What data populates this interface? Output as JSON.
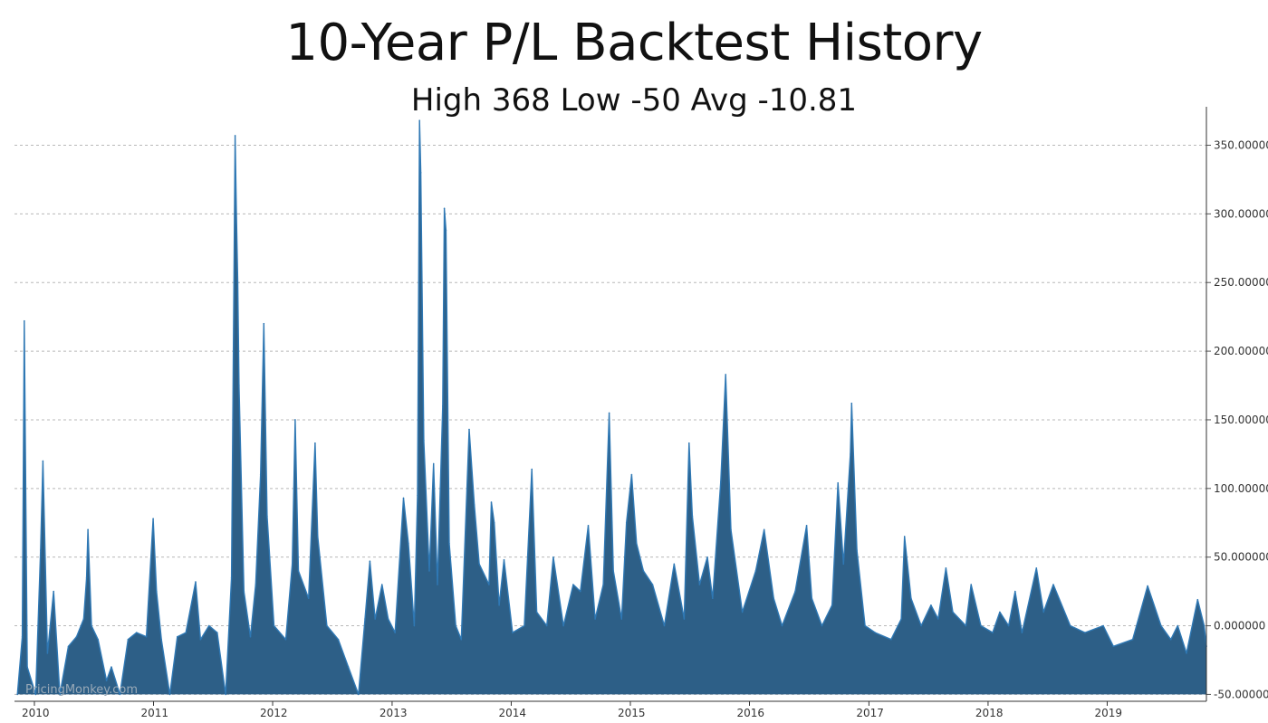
{
  "chart_data": {
    "type": "area",
    "title": "10-Year P/L Backtest History",
    "subtitle": "High 368 Low -50 Avg -10.81",
    "xlabel": "",
    "ylabel": "",
    "x_range": [
      "2009-11",
      "2019-11"
    ],
    "x_ticks": [
      "2010",
      "2011",
      "2012",
      "2013",
      "2014",
      "2015",
      "2016",
      "2017",
      "2018",
      "2019"
    ],
    "ylim": [
      -55,
      378
    ],
    "y_ticks": [
      {
        "value": -50,
        "label": "-50.000000"
      },
      {
        "value": 0,
        "label": "0.000000"
      },
      {
        "value": 50,
        "label": "50.000000"
      },
      {
        "value": 100,
        "label": "100.000000"
      },
      {
        "value": 150,
        "label": "150.000000"
      },
      {
        "value": 200,
        "label": "200.000000"
      },
      {
        "value": 250,
        "label": "250.000000"
      },
      {
        "value": 300,
        "label": "300.000000"
      },
      {
        "value": 350,
        "label": "350.000000"
      }
    ],
    "y_axis_position": "right",
    "grid": "horizontal-dashed",
    "baseline": -50,
    "series_color": "#2f78b4",
    "fill_color": "#2d5f87",
    "watermark": "PricingMonkey.com",
    "series": [
      {
        "points": [
          [
            "2009-11-10",
            -50
          ],
          [
            "2009-11-25",
            -8
          ],
          [
            "2009-12-01",
            222
          ],
          [
            "2009-12-10",
            -30
          ],
          [
            "2010-01-05",
            -50
          ],
          [
            "2010-01-20",
            55
          ],
          [
            "2010-01-27",
            120
          ],
          [
            "2010-02-10",
            -20
          ],
          [
            "2010-03-01",
            25
          ],
          [
            "2010-03-20",
            -50
          ],
          [
            "2010-04-15",
            -15
          ],
          [
            "2010-05-10",
            -8
          ],
          [
            "2010-06-01",
            5
          ],
          [
            "2010-06-10",
            35
          ],
          [
            "2010-06-14",
            70
          ],
          [
            "2010-06-25",
            0
          ],
          [
            "2010-07-15",
            -10
          ],
          [
            "2010-08-10",
            -40
          ],
          [
            "2010-08-25",
            -30
          ],
          [
            "2010-09-20",
            -50
          ],
          [
            "2010-10-15",
            -10
          ],
          [
            "2010-11-10",
            -5
          ],
          [
            "2010-12-10",
            -8
          ],
          [
            "2010-12-31",
            78
          ],
          [
            "2011-01-10",
            25
          ],
          [
            "2011-01-25",
            -10
          ],
          [
            "2011-02-20",
            -50
          ],
          [
            "2011-03-15",
            -8
          ],
          [
            "2011-04-10",
            -5
          ],
          [
            "2011-05-10",
            32
          ],
          [
            "2011-05-25",
            -10
          ],
          [
            "2011-06-20",
            0
          ],
          [
            "2011-07-15",
            -5
          ],
          [
            "2011-08-10",
            -50
          ],
          [
            "2011-08-28",
            35
          ],
          [
            "2011-09-08",
            357
          ],
          [
            "2011-09-12",
            300
          ],
          [
            "2011-09-16",
            250
          ],
          [
            "2011-09-20",
            175
          ],
          [
            "2011-10-05",
            25
          ],
          [
            "2011-10-25",
            -8
          ],
          [
            "2011-11-10",
            30
          ],
          [
            "2011-11-25",
            110
          ],
          [
            "2011-12-05",
            220
          ],
          [
            "2011-12-15",
            80
          ],
          [
            "2012-01-05",
            0
          ],
          [
            "2012-02-10",
            -10
          ],
          [
            "2012-03-01",
            45
          ],
          [
            "2012-03-10",
            150
          ],
          [
            "2012-03-20",
            40
          ],
          [
            "2012-04-20",
            20
          ],
          [
            "2012-05-10",
            133
          ],
          [
            "2012-05-18",
            65
          ],
          [
            "2012-06-15",
            0
          ],
          [
            "2012-07-20",
            -10
          ],
          [
            "2012-08-20",
            -30
          ],
          [
            "2012-09-20",
            -50
          ],
          [
            "2012-10-10",
            5
          ],
          [
            "2012-10-25",
            47
          ],
          [
            "2012-11-10",
            5
          ],
          [
            "2012-12-01",
            30
          ],
          [
            "2012-12-20",
            5
          ],
          [
            "2013-01-10",
            -5
          ],
          [
            "2013-02-05",
            93
          ],
          [
            "2013-02-20",
            60
          ],
          [
            "2013-03-10",
            0
          ],
          [
            "2013-03-20",
            95
          ],
          [
            "2013-03-26",
            368
          ],
          [
            "2013-03-30",
            330
          ],
          [
            "2013-04-08",
            135
          ],
          [
            "2013-04-25",
            40
          ],
          [
            "2013-05-08",
            118
          ],
          [
            "2013-05-20",
            30
          ],
          [
            "2013-06-05",
            160
          ],
          [
            "2013-06-10",
            304
          ],
          [
            "2013-06-15",
            288
          ],
          [
            "2013-06-25",
            60
          ],
          [
            "2013-07-15",
            0
          ],
          [
            "2013-08-01",
            -10
          ],
          [
            "2013-08-25",
            143
          ],
          [
            "2013-09-10",
            88
          ],
          [
            "2013-09-25",
            45
          ],
          [
            "2013-10-25",
            30
          ],
          [
            "2013-11-01",
            90
          ],
          [
            "2013-11-10",
            75
          ],
          [
            "2013-11-25",
            15
          ],
          [
            "2013-12-10",
            48
          ],
          [
            "2014-01-05",
            -5
          ],
          [
            "2014-02-10",
            0
          ],
          [
            "2014-03-05",
            114
          ],
          [
            "2014-03-20",
            10
          ],
          [
            "2014-04-20",
            0
          ],
          [
            "2014-05-10",
            50
          ],
          [
            "2014-06-10",
            0
          ],
          [
            "2014-07-10",
            30
          ],
          [
            "2014-08-01",
            25
          ],
          [
            "2014-08-25",
            73
          ],
          [
            "2014-09-15",
            5
          ],
          [
            "2014-10-10",
            30
          ],
          [
            "2014-10-28",
            155
          ],
          [
            "2014-11-10",
            40
          ],
          [
            "2014-12-05",
            5
          ],
          [
            "2014-12-20",
            75
          ],
          [
            "2015-01-05",
            110
          ],
          [
            "2015-01-20",
            60
          ],
          [
            "2015-02-10",
            40
          ],
          [
            "2015-03-10",
            30
          ],
          [
            "2015-04-15",
            0
          ],
          [
            "2015-05-15",
            45
          ],
          [
            "2015-06-15",
            5
          ],
          [
            "2015-06-30",
            133
          ],
          [
            "2015-07-10",
            80
          ],
          [
            "2015-08-01",
            30
          ],
          [
            "2015-08-25",
            50
          ],
          [
            "2015-09-10",
            20
          ],
          [
            "2015-10-05",
            105
          ],
          [
            "2015-10-20",
            183
          ],
          [
            "2015-11-05",
            70
          ],
          [
            "2015-12-10",
            10
          ],
          [
            "2016-01-20",
            40
          ],
          [
            "2016-02-15",
            70
          ],
          [
            "2016-03-15",
            20
          ],
          [
            "2016-04-10",
            0
          ],
          [
            "2016-05-20",
            25
          ],
          [
            "2016-06-24",
            73
          ],
          [
            "2016-07-10",
            20
          ],
          [
            "2016-08-10",
            0
          ],
          [
            "2016-09-10",
            15
          ],
          [
            "2016-09-28",
            104
          ],
          [
            "2016-10-15",
            45
          ],
          [
            "2016-11-05",
            125
          ],
          [
            "2016-11-09",
            162
          ],
          [
            "2016-11-25",
            55
          ],
          [
            "2016-12-20",
            0
          ],
          [
            "2017-01-20",
            -5
          ],
          [
            "2017-03-10",
            -10
          ],
          [
            "2017-04-10",
            5
          ],
          [
            "2017-04-20",
            65
          ],
          [
            "2017-05-10",
            20
          ],
          [
            "2017-06-10",
            0
          ],
          [
            "2017-07-10",
            15
          ],
          [
            "2017-08-01",
            5
          ],
          [
            "2017-08-25",
            42
          ],
          [
            "2017-09-15",
            10
          ],
          [
            "2017-10-25",
            0
          ],
          [
            "2017-11-10",
            30
          ],
          [
            "2017-12-10",
            0
          ],
          [
            "2018-01-15",
            -5
          ],
          [
            "2018-02-06",
            10
          ],
          [
            "2018-03-05",
            0
          ],
          [
            "2018-03-25",
            25
          ],
          [
            "2018-04-15",
            -5
          ],
          [
            "2018-05-29",
            42
          ],
          [
            "2018-06-20",
            10
          ],
          [
            "2018-07-20",
            30
          ],
          [
            "2018-09-10",
            0
          ],
          [
            "2018-10-25",
            -5
          ],
          [
            "2018-12-20",
            0
          ],
          [
            "2019-01-20",
            -15
          ],
          [
            "2019-03-20",
            -10
          ],
          [
            "2019-05-05",
            29
          ],
          [
            "2019-06-15",
            0
          ],
          [
            "2019-07-15",
            -10
          ],
          [
            "2019-08-05",
            0
          ],
          [
            "2019-09-01",
            -20
          ],
          [
            "2019-10-05",
            19
          ],
          [
            "2019-10-25",
            0
          ],
          [
            "2019-11-01",
            -15
          ]
        ]
      }
    ]
  }
}
